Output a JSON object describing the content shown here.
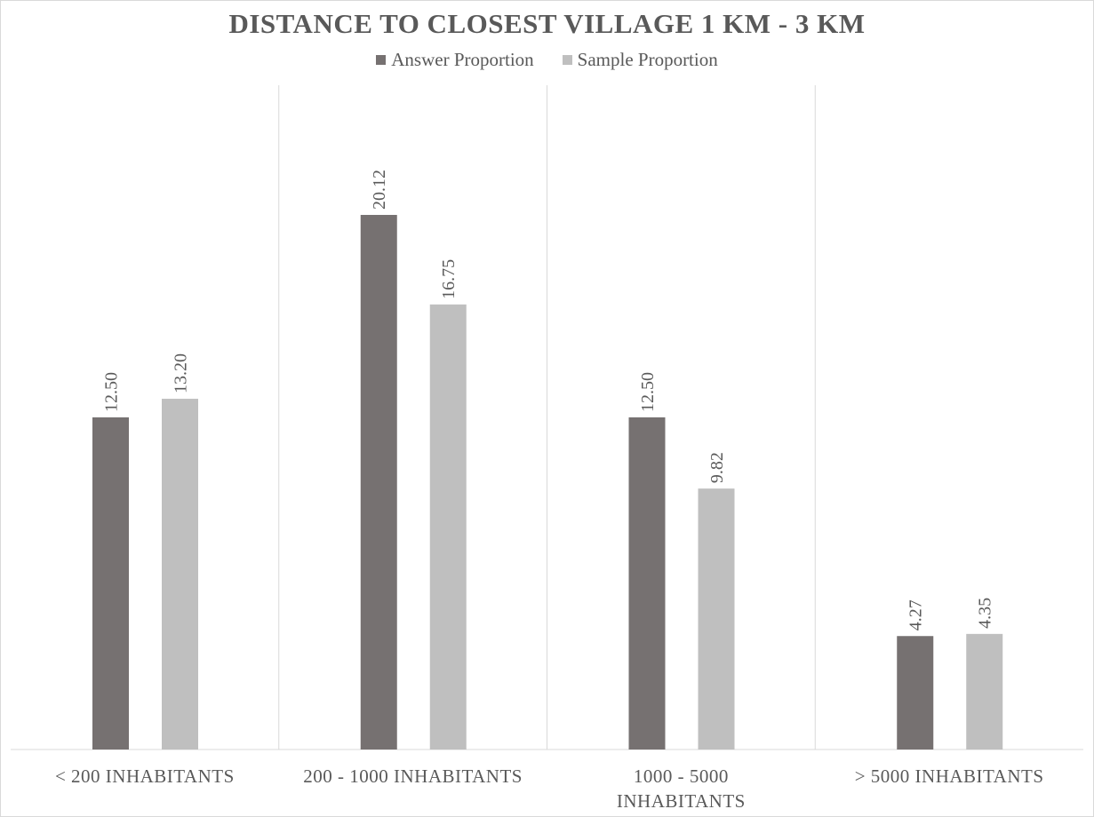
{
  "chart_data": {
    "type": "bar",
    "title": "DISTANCE TO CLOSEST VILLAGE 1 KM - 3 KM",
    "categories": [
      [
        "< 200 INHABITANTS"
      ],
      [
        "200 - 1000 INHABITANTS"
      ],
      [
        "1000 - 5000",
        "INHABITANTS"
      ],
      [
        "> 5000 INHABITANTS"
      ]
    ],
    "series": [
      {
        "name": "Answer Proportion",
        "color": "#767171",
        "values": [
          12.5,
          20.12,
          12.5,
          4.27
        ],
        "labels": [
          "12.50",
          "20.12",
          "12.50",
          "4.27"
        ]
      },
      {
        "name": "Sample Proportion",
        "color": "#bfbfbf",
        "values": [
          13.2,
          16.75,
          9.82,
          4.35
        ],
        "labels": [
          "13.20",
          "16.75",
          "9.82",
          "4.35"
        ]
      }
    ],
    "ylim": [
      0,
      25
    ],
    "grid": "vertical category separators",
    "legend": "top-center",
    "xlabel": "",
    "ylabel": ""
  }
}
